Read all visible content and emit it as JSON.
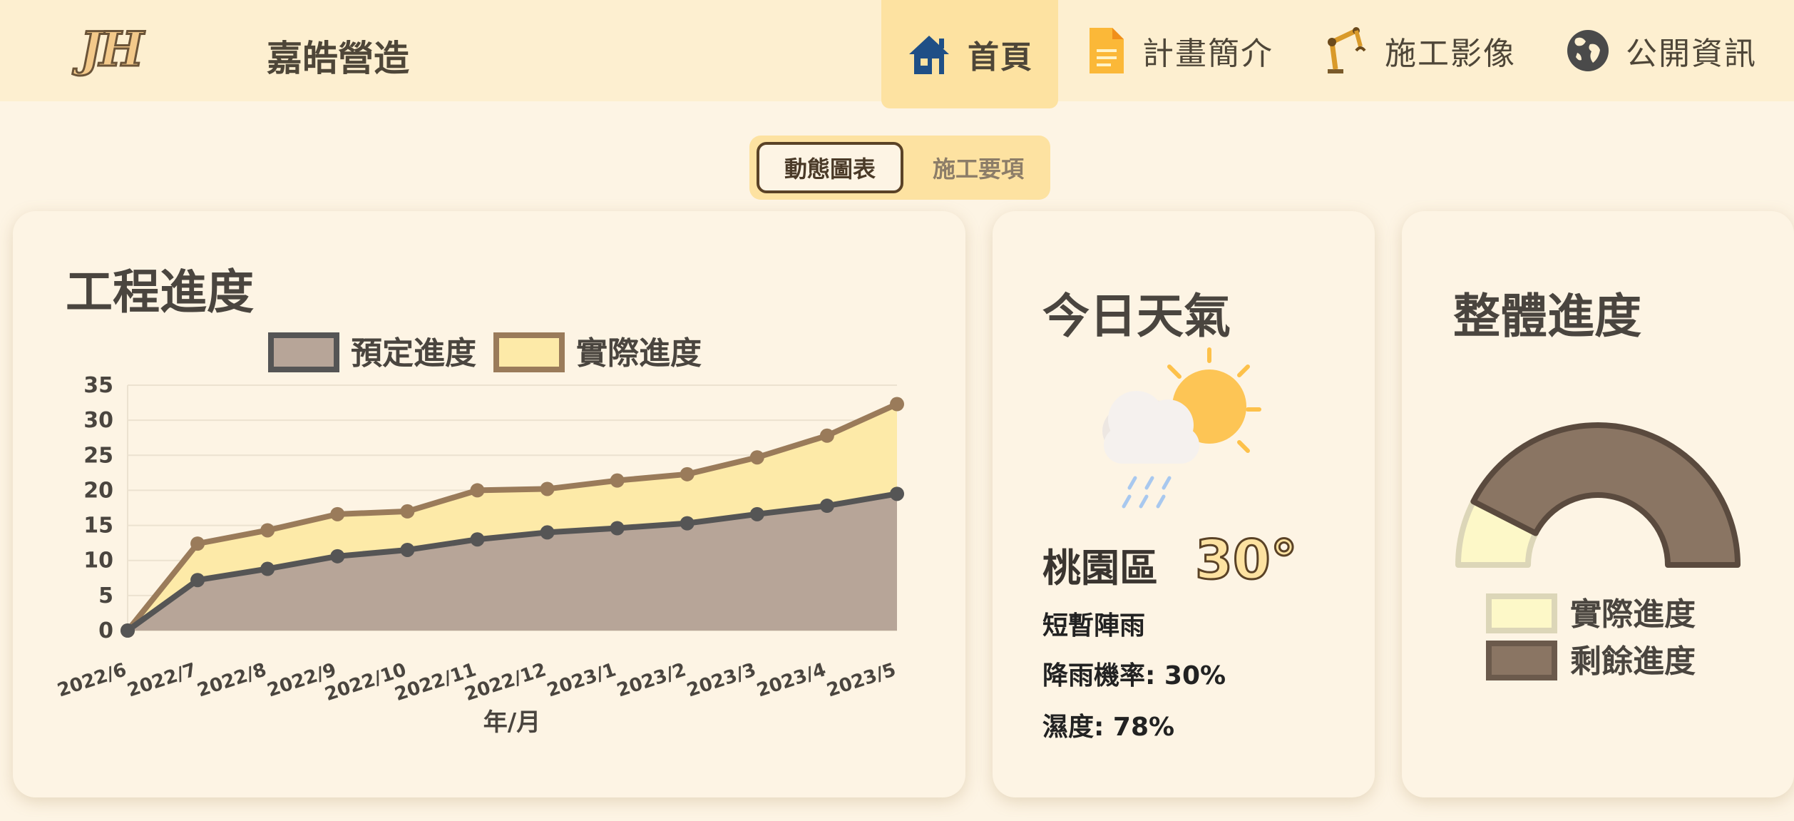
{
  "header": {
    "logo": "JH",
    "brand": "嘉皓營造",
    "nav": [
      {
        "label": "首頁",
        "icon": "home-icon",
        "active": true
      },
      {
        "label": "計畫簡介",
        "icon": "document-icon"
      },
      {
        "label": "施工影像",
        "icon": "robot-arm-icon"
      },
      {
        "label": "公開資訊",
        "icon": "globe-icon"
      }
    ]
  },
  "toggle": {
    "active_label": "動態圖表",
    "inactive_label": "施工要項"
  },
  "progress_card": {
    "title": "工程進度"
  },
  "weather": {
    "title": "今日天氣",
    "icon": "sun-cloud-rain-icon",
    "location": "桃園區",
    "temperature": "30°",
    "condition": "短暫陣雨",
    "rain_chance": "降雨機率: 30%",
    "humidity": "濕度: 78%"
  },
  "overall": {
    "title": "整體進度",
    "legend": [
      "實際進度",
      "剩餘進度"
    ]
  },
  "colors": {
    "planned_fill": "#b7a598",
    "planned_line": "#555555",
    "actual_fill": "#fdeaa8",
    "actual_line": "#9a7b5a",
    "remaining": "#8a7563",
    "actual_gauge": "#fdf8c8"
  },
  "chart_data": [
    {
      "type": "area",
      "xlabel": "年/月",
      "ylabel": "",
      "ylim": [
        0,
        35
      ],
      "yticks": [
        0,
        5,
        10,
        15,
        20,
        25,
        30,
        35
      ],
      "grid": true,
      "legend_position": "top",
      "categories": [
        "2022/6",
        "2022/7",
        "2022/8",
        "2022/9",
        "2022/10",
        "2022/11",
        "2022/12",
        "2023/1",
        "2023/2",
        "2023/3",
        "2023/4",
        "2023/5"
      ],
      "series": [
        {
          "name": "預定進度",
          "values": [
            0,
            7.2,
            8.8,
            10.6,
            11.5,
            13,
            14,
            14.6,
            15.3,
            16.6,
            17.8,
            19.5
          ]
        },
        {
          "name": "實際進度",
          "values": [
            0,
            12.4,
            14.3,
            16.6,
            17,
            20,
            20.2,
            21.4,
            22.3,
            24.7,
            27.8,
            32.3
          ]
        }
      ]
    },
    {
      "type": "pie",
      "variant": "half-doughnut",
      "categories": [
        "實際進度",
        "剩餘進度"
      ],
      "values": [
        15,
        85
      ]
    }
  ]
}
